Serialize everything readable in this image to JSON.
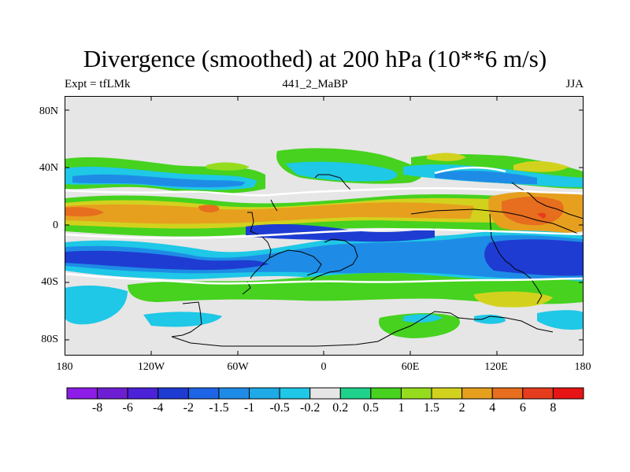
{
  "title": "Divergence (smoothed) at 200 hPa (10**6 m/s)",
  "subtitle_left": "Expt = tfLMk",
  "subtitle_center": "441_2_MaBP",
  "subtitle_right": "JJA",
  "y_axis": {
    "ticks": [
      {
        "label": "80N",
        "lat": 80
      },
      {
        "label": "40N",
        "lat": 40
      },
      {
        "label": "0",
        "lat": 0
      },
      {
        "label": "40S",
        "lat": -40
      },
      {
        "label": "80S",
        "lat": -80
      }
    ]
  },
  "x_axis": {
    "ticks": [
      {
        "label": "180",
        "lon": -180
      },
      {
        "label": "120W",
        "lon": -120
      },
      {
        "label": "60W",
        "lon": -60
      },
      {
        "label": "0",
        "lon": 0
      },
      {
        "label": "60E",
        "lon": 60
      },
      {
        "label": "120E",
        "lon": 120
      },
      {
        "label": "180",
        "lon": 180
      }
    ]
  },
  "colorbar": {
    "labels": [
      "-8",
      "-6",
      "-4",
      "-2",
      "-1.5",
      "-1",
      "-0.5",
      "-0.2",
      "0.2",
      "0.5",
      "1",
      "1.5",
      "2",
      "4",
      "6",
      "8"
    ],
    "colors": [
      "#8c1ce6",
      "#6e1ed2",
      "#4b22d8",
      "#1e3cd2",
      "#1e64e6",
      "#1e8ce6",
      "#1eaae6",
      "#1ec8e6",
      "#e6e6e6",
      "#1ed28c",
      "#46d21e",
      "#96dc1e",
      "#d2d21e",
      "#e6a01e",
      "#e66e1e",
      "#e63c1e",
      "#e61414"
    ]
  },
  "map_colors": {
    "background": "#e6e6e6",
    "neg_strong": "#1e3cd2",
    "neg_mid": "#1e8ce6",
    "neg_weak": "#1ec8e6",
    "pos_weak": "#1ed28c",
    "pos_mid": "#46d21e",
    "pos_light": "#96dc1e",
    "pos_yellow": "#d2d21e",
    "pos_orange": "#e6a01e",
    "pos_red": "#e66e1e"
  }
}
